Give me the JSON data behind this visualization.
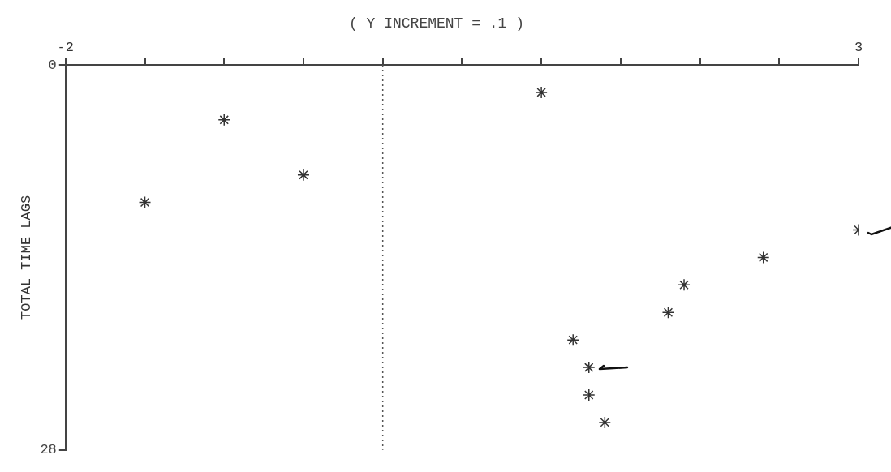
{
  "chart_data": {
    "type": "scatter",
    "title": "( Y INCREMENT = .1 )",
    "ylabel": "TOTAL TIME LAGS",
    "x": [
      1.0,
      -1.0,
      -0.5,
      -1.5,
      3.0,
      2.4,
      1.9,
      1.8,
      1.2,
      1.3,
      1.3,
      1.4
    ],
    "values": [
      2,
      4,
      8,
      10,
      12,
      14,
      16,
      18,
      20,
      22,
      24,
      26
    ],
    "color": "#333333",
    "marker": "cross",
    "grid": false,
    "xlim": [
      -2,
      3
    ],
    "xticks": [
      -2,
      {
        "value": -1.5,
        "label": null
      },
      {
        "value": -1,
        "label": null
      },
      {
        "value": -0.5,
        "label": null
      },
      {
        "value": 0,
        "label": null
      },
      {
        "value": 0.5,
        "label": null
      },
      {
        "value": 1,
        "label": null
      },
      {
        "value": 1.5,
        "label": null
      },
      {
        "value": 2,
        "label": null
      },
      {
        "value": 2.5,
        "label": null
      },
      3
    ],
    "ylim": [
      28,
      0
    ],
    "yticks": [
      0,
      28
    ],
    "ref_lines": [
      {
        "axis": "x",
        "value": 0,
        "line_style": "dotted",
        "color": "#555555"
      }
    ]
  }
}
